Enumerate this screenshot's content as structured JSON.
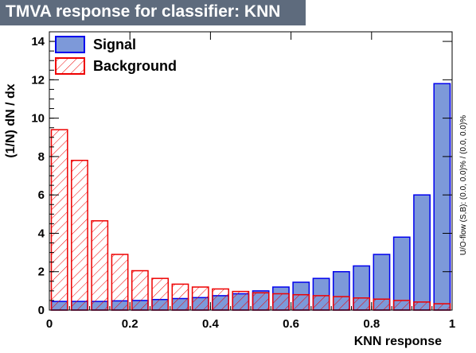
{
  "window": {
    "title": "TMVA response for classifier: KNN"
  },
  "chart_data": {
    "type": "bar",
    "title": "TMVA response for classifier: KNN",
    "xlabel": "KNN response",
    "ylabel": "(1/N) dN / dx",
    "xlim": [
      0,
      1
    ],
    "ylim": [
      0,
      14.5
    ],
    "x_ticks": [
      "0",
      "0.2",
      "0.4",
      "0.6",
      "0.8",
      "1"
    ],
    "y_ticks": [
      "0",
      "2",
      "4",
      "6",
      "8",
      "10",
      "12",
      "14"
    ],
    "bin_edges": [
      0,
      0.05,
      0.1,
      0.15,
      0.2,
      0.25,
      0.3,
      0.35,
      0.4,
      0.45,
      0.5,
      0.55,
      0.6,
      0.65,
      0.7,
      0.75,
      0.8,
      0.85,
      0.9,
      0.95,
      1.0
    ],
    "side_note": "U/O-flow (S,B): (0.0, 0.0)% / (0.0, 0.0)%",
    "legend_position": "top-left",
    "series": [
      {
        "name": "Signal",
        "style": "filled",
        "color": "#0000ee",
        "fill": "#7d99d9",
        "values": [
          0.45,
          0.45,
          0.45,
          0.48,
          0.5,
          0.55,
          0.6,
          0.65,
          0.75,
          0.85,
          1.0,
          1.2,
          1.45,
          1.65,
          2.0,
          2.3,
          2.9,
          3.8,
          6.0,
          11.8
        ]
      },
      {
        "name": "Background",
        "style": "hatched",
        "color": "#ee0000",
        "values": [
          9.4,
          7.8,
          4.65,
          2.9,
          2.05,
          1.65,
          1.35,
          1.2,
          1.1,
          0.97,
          0.9,
          0.85,
          0.8,
          0.75,
          0.7,
          0.63,
          0.57,
          0.5,
          0.42,
          0.33
        ]
      }
    ]
  }
}
